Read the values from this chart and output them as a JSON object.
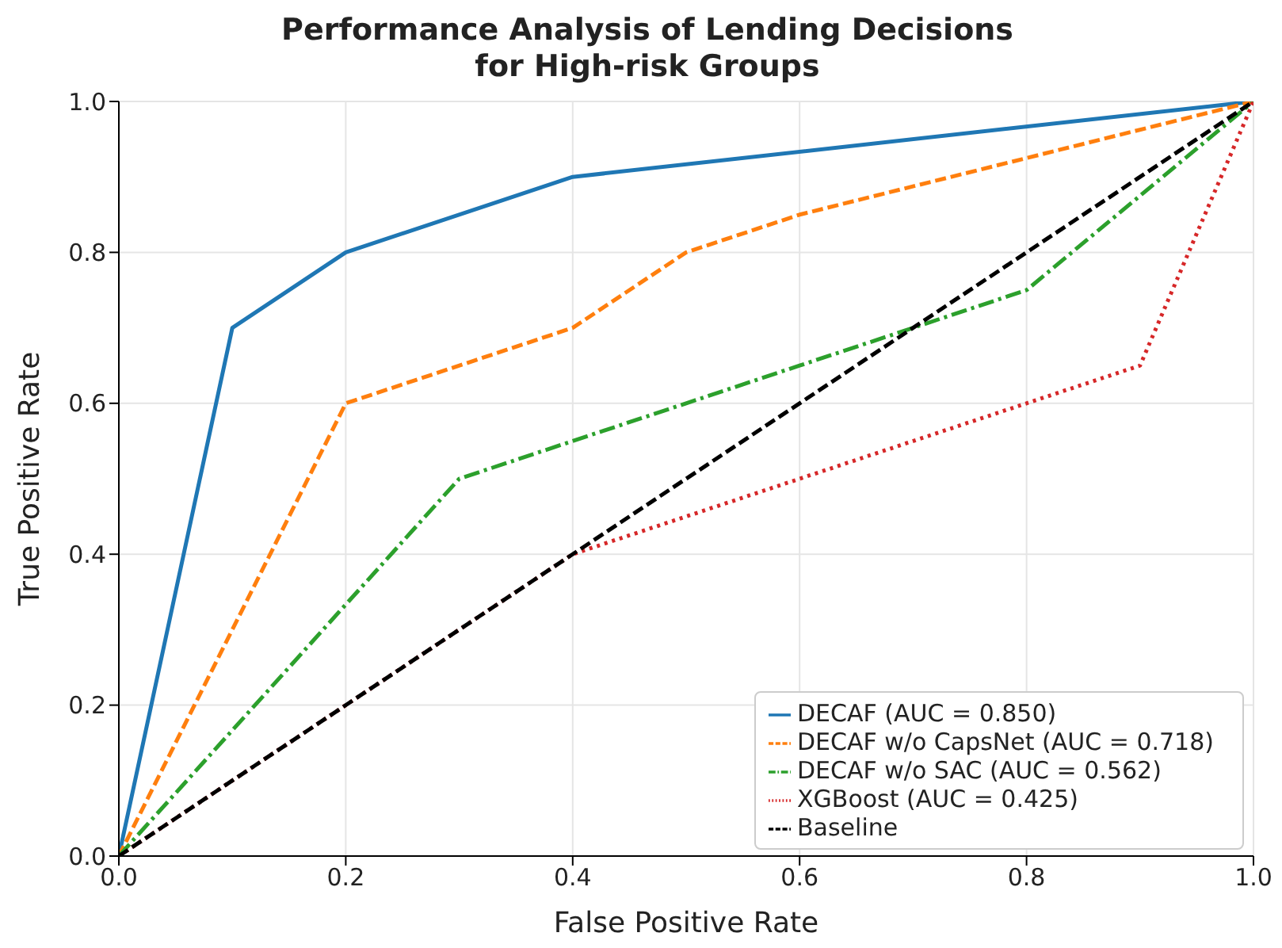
{
  "chart_data": {
    "type": "line",
    "title": "Performance Analysis of Lending Decisions\nfor High-risk Groups",
    "xlabel": "False Positive Rate",
    "ylabel": "True Positive Rate",
    "xlim": [
      0,
      1
    ],
    "ylim": [
      0,
      1
    ],
    "xticks": [
      {
        "value": 0,
        "label": "0.0"
      },
      {
        "value": 0.2,
        "label": "0.2"
      },
      {
        "value": 0.4,
        "label": "0.4"
      },
      {
        "value": 0.6,
        "label": "0.6"
      },
      {
        "value": 0.8,
        "label": "0.8"
      },
      {
        "value": 1,
        "label": "1.0"
      }
    ],
    "yticks": [
      {
        "value": 0,
        "label": "0.0"
      },
      {
        "value": 0.2,
        "label": "0.2"
      },
      {
        "value": 0.4,
        "label": "0.4"
      },
      {
        "value": 0.6,
        "label": "0.6"
      },
      {
        "value": 0.8,
        "label": "0.8"
      },
      {
        "value": 1,
        "label": "1.0"
      }
    ],
    "grid": true,
    "legend": "bottom right",
    "marker": "none",
    "series": [
      {
        "name": "DECAF (AUC = 0.850)",
        "color": "#1f77b4",
        "line_style": "solid",
        "x": [
          0,
          0.1,
          0.2,
          0.4,
          1
        ],
        "values": [
          0,
          0.7,
          0.8,
          0.9,
          1
        ]
      },
      {
        "name": "DECAF w/o CapsNet (AUC = 0.718)",
        "color": "#ff7f0e",
        "line_style": "dashed",
        "x": [
          0,
          0.2,
          0.4,
          0.5,
          0.6,
          1
        ],
        "values": [
          0,
          0.6,
          0.7,
          0.8,
          0.85,
          1
        ]
      },
      {
        "name": "DECAF w/o SAC (AUC = 0.562)",
        "color": "#2ca02c",
        "line_style": "dashdot",
        "x": [
          0,
          0.3,
          0.4,
          0.6,
          0.8,
          1
        ],
        "values": [
          0,
          0.5,
          0.55,
          0.65,
          0.75,
          1
        ]
      },
      {
        "name": "XGBoost (AUC = 0.425)",
        "color": "#d62728",
        "line_style": "dotted",
        "x": [
          0,
          0.4,
          0.6,
          0.8,
          0.9,
          1
        ],
        "values": [
          0,
          0.4,
          0.5,
          0.6,
          0.65,
          1
        ]
      },
      {
        "name": "Baseline",
        "color": "#000000",
        "line_style": "dashed",
        "x": [
          0,
          1
        ],
        "values": [
          0,
          1
        ]
      }
    ]
  }
}
